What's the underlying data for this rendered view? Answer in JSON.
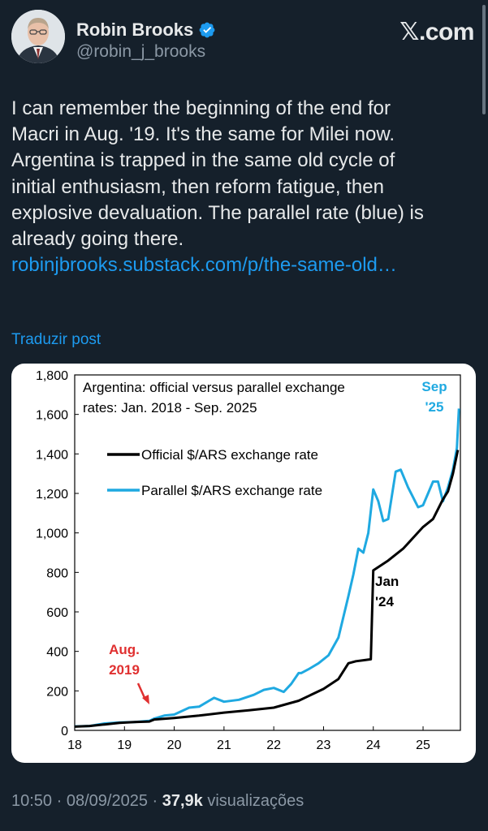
{
  "header": {
    "name": "Robin Brooks",
    "handle": "@robin_j_brooks",
    "site": "𝕏.com",
    "verified_icon": "verified-badge-icon",
    "verified_color": "#1d9bf0"
  },
  "tweet": {
    "lines": [
      "I can remember the beginning of the end for",
      "Macri in Aug. '19. It's the same for Milei now.",
      "Argentina is trapped in the same old cycle of",
      "initial enthusiasm, then reform fatigue, then",
      "explosive devaluation. The parallel rate (blue) is",
      "already going there."
    ],
    "link": "robinjbrooks.substack.com/p/the-same-old…",
    "translate": "Traduzir post"
  },
  "footer": {
    "time": "10:50",
    "sep1": " · ",
    "date": "08/09/2025",
    "sep2": " · ",
    "views": "37,9k",
    "views_label": " visualizações"
  },
  "chart_data": {
    "type": "line",
    "title_lines": [
      "Argentina: official versus parallel exchange",
      "rates: Jan. 2018 - Sep. 2025"
    ],
    "xlim": [
      18,
      25.75
    ],
    "ylim": [
      0,
      1800
    ],
    "xticks": [
      "18",
      "19",
      "20",
      "21",
      "22",
      "23",
      "24",
      "25"
    ],
    "yticks": [
      "0",
      "200",
      "400",
      "600",
      "800",
      "1,000",
      "1,200",
      "1,400",
      "1,600",
      "1,800"
    ],
    "series": [
      {
        "name": "Official $/ARS exchange rate",
        "color": "#000000",
        "x": [
          18.0,
          18.3,
          18.6,
          18.9,
          19.2,
          19.5,
          19.6,
          20.0,
          20.5,
          21.0,
          21.5,
          22.0,
          22.5,
          23.0,
          23.3,
          23.5,
          23.65,
          23.8,
          23.95,
          24.0,
          24.3,
          24.6,
          25.0,
          25.2,
          25.4,
          25.5,
          25.6,
          25.7
        ],
        "values": [
          19,
          22,
          30,
          38,
          42,
          45,
          55,
          63,
          75,
          90,
          102,
          115,
          150,
          210,
          260,
          340,
          350,
          355,
          360,
          810,
          860,
          920,
          1030,
          1070,
          1170,
          1210,
          1300,
          1420
        ]
      },
      {
        "name": "Parallel $/ARS exchange rate",
        "color": "#1fa9e1",
        "x": [
          18.0,
          18.3,
          18.6,
          18.9,
          19.2,
          19.5,
          19.6,
          19.8,
          20.0,
          20.3,
          20.5,
          20.7,
          20.8,
          21.0,
          21.3,
          21.6,
          21.8,
          22.0,
          22.2,
          22.35,
          22.5,
          22.55,
          22.7,
          22.9,
          23.1,
          23.3,
          23.5,
          23.6,
          23.7,
          23.8,
          23.9,
          24.0,
          24.1,
          24.2,
          24.3,
          24.45,
          24.55,
          24.7,
          24.9,
          25.0,
          25.1,
          25.2,
          25.3,
          25.4,
          25.5,
          25.6,
          25.68,
          25.72
        ],
        "values": [
          20,
          22,
          35,
          40,
          42,
          48,
          60,
          75,
          80,
          115,
          120,
          150,
          165,
          145,
          155,
          180,
          205,
          215,
          195,
          235,
          290,
          290,
          310,
          340,
          380,
          470,
          680,
          790,
          920,
          900,
          1000,
          1220,
          1160,
          1060,
          1070,
          1310,
          1320,
          1230,
          1130,
          1140,
          1200,
          1260,
          1260,
          1160,
          1230,
          1320,
          1430,
          1630
        ]
      }
    ],
    "annotations": [
      {
        "lines": [
          "Aug.",
          "2019"
        ],
        "color": "#e03030",
        "x": 19.58,
        "y": 30
      },
      {
        "lines": [
          "Jan",
          "'24"
        ],
        "color": "#000000",
        "x": 24.02,
        "y": 800
      },
      {
        "lines": [
          "Sep",
          "'25"
        ],
        "color": "#1fa9e1",
        "x": 25.72,
        "y": 1650
      }
    ]
  }
}
